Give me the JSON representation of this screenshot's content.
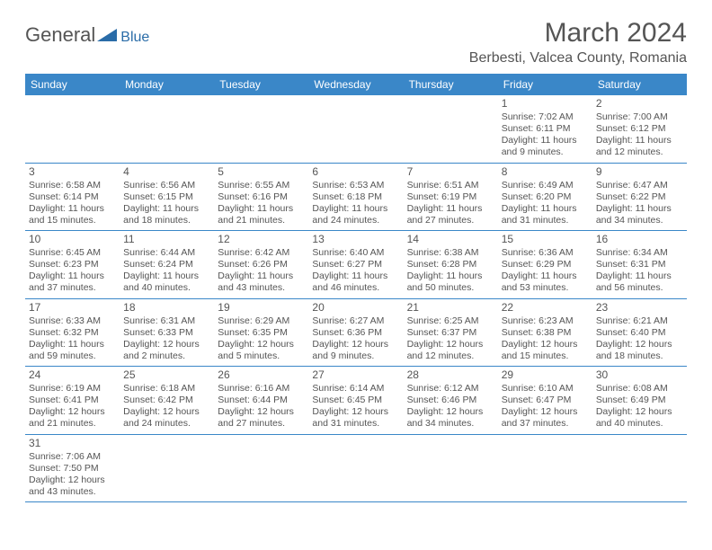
{
  "logo": {
    "general": "General",
    "blue": "Blue"
  },
  "title": "March 2024",
  "location": "Berbesti, Valcea County, Romania",
  "colors": {
    "header_bg": "#3a87c8",
    "header_text": "#ffffff",
    "border": "#3a87c8",
    "text": "#555555",
    "logo_accent": "#2a6ca8",
    "background": "#ffffff"
  },
  "day_names": [
    "Sunday",
    "Monday",
    "Tuesday",
    "Wednesday",
    "Thursday",
    "Friday",
    "Saturday"
  ],
  "weeks": [
    [
      null,
      null,
      null,
      null,
      null,
      {
        "d": "1",
        "sr": "7:02 AM",
        "ss": "6:11 PM",
        "dl": "11 hours and 9 minutes."
      },
      {
        "d": "2",
        "sr": "7:00 AM",
        "ss": "6:12 PM",
        "dl": "11 hours and 12 minutes."
      }
    ],
    [
      {
        "d": "3",
        "sr": "6:58 AM",
        "ss": "6:14 PM",
        "dl": "11 hours and 15 minutes."
      },
      {
        "d": "4",
        "sr": "6:56 AM",
        "ss": "6:15 PM",
        "dl": "11 hours and 18 minutes."
      },
      {
        "d": "5",
        "sr": "6:55 AM",
        "ss": "6:16 PM",
        "dl": "11 hours and 21 minutes."
      },
      {
        "d": "6",
        "sr": "6:53 AM",
        "ss": "6:18 PM",
        "dl": "11 hours and 24 minutes."
      },
      {
        "d": "7",
        "sr": "6:51 AM",
        "ss": "6:19 PM",
        "dl": "11 hours and 27 minutes."
      },
      {
        "d": "8",
        "sr": "6:49 AM",
        "ss": "6:20 PM",
        "dl": "11 hours and 31 minutes."
      },
      {
        "d": "9",
        "sr": "6:47 AM",
        "ss": "6:22 PM",
        "dl": "11 hours and 34 minutes."
      }
    ],
    [
      {
        "d": "10",
        "sr": "6:45 AM",
        "ss": "6:23 PM",
        "dl": "11 hours and 37 minutes."
      },
      {
        "d": "11",
        "sr": "6:44 AM",
        "ss": "6:24 PM",
        "dl": "11 hours and 40 minutes."
      },
      {
        "d": "12",
        "sr": "6:42 AM",
        "ss": "6:26 PM",
        "dl": "11 hours and 43 minutes."
      },
      {
        "d": "13",
        "sr": "6:40 AM",
        "ss": "6:27 PM",
        "dl": "11 hours and 46 minutes."
      },
      {
        "d": "14",
        "sr": "6:38 AM",
        "ss": "6:28 PM",
        "dl": "11 hours and 50 minutes."
      },
      {
        "d": "15",
        "sr": "6:36 AM",
        "ss": "6:29 PM",
        "dl": "11 hours and 53 minutes."
      },
      {
        "d": "16",
        "sr": "6:34 AM",
        "ss": "6:31 PM",
        "dl": "11 hours and 56 minutes."
      }
    ],
    [
      {
        "d": "17",
        "sr": "6:33 AM",
        "ss": "6:32 PM",
        "dl": "11 hours and 59 minutes."
      },
      {
        "d": "18",
        "sr": "6:31 AM",
        "ss": "6:33 PM",
        "dl": "12 hours and 2 minutes."
      },
      {
        "d": "19",
        "sr": "6:29 AM",
        "ss": "6:35 PM",
        "dl": "12 hours and 5 minutes."
      },
      {
        "d": "20",
        "sr": "6:27 AM",
        "ss": "6:36 PM",
        "dl": "12 hours and 9 minutes."
      },
      {
        "d": "21",
        "sr": "6:25 AM",
        "ss": "6:37 PM",
        "dl": "12 hours and 12 minutes."
      },
      {
        "d": "22",
        "sr": "6:23 AM",
        "ss": "6:38 PM",
        "dl": "12 hours and 15 minutes."
      },
      {
        "d": "23",
        "sr": "6:21 AM",
        "ss": "6:40 PM",
        "dl": "12 hours and 18 minutes."
      }
    ],
    [
      {
        "d": "24",
        "sr": "6:19 AM",
        "ss": "6:41 PM",
        "dl": "12 hours and 21 minutes."
      },
      {
        "d": "25",
        "sr": "6:18 AM",
        "ss": "6:42 PM",
        "dl": "12 hours and 24 minutes."
      },
      {
        "d": "26",
        "sr": "6:16 AM",
        "ss": "6:44 PM",
        "dl": "12 hours and 27 minutes."
      },
      {
        "d": "27",
        "sr": "6:14 AM",
        "ss": "6:45 PM",
        "dl": "12 hours and 31 minutes."
      },
      {
        "d": "28",
        "sr": "6:12 AM",
        "ss": "6:46 PM",
        "dl": "12 hours and 34 minutes."
      },
      {
        "d": "29",
        "sr": "6:10 AM",
        "ss": "6:47 PM",
        "dl": "12 hours and 37 minutes."
      },
      {
        "d": "30",
        "sr": "6:08 AM",
        "ss": "6:49 PM",
        "dl": "12 hours and 40 minutes."
      }
    ],
    [
      {
        "d": "31",
        "sr": "7:06 AM",
        "ss": "7:50 PM",
        "dl": "12 hours and 43 minutes."
      },
      null,
      null,
      null,
      null,
      null,
      null
    ]
  ],
  "labels": {
    "sunrise": "Sunrise: ",
    "sunset": "Sunset: ",
    "daylight": "Daylight: "
  }
}
